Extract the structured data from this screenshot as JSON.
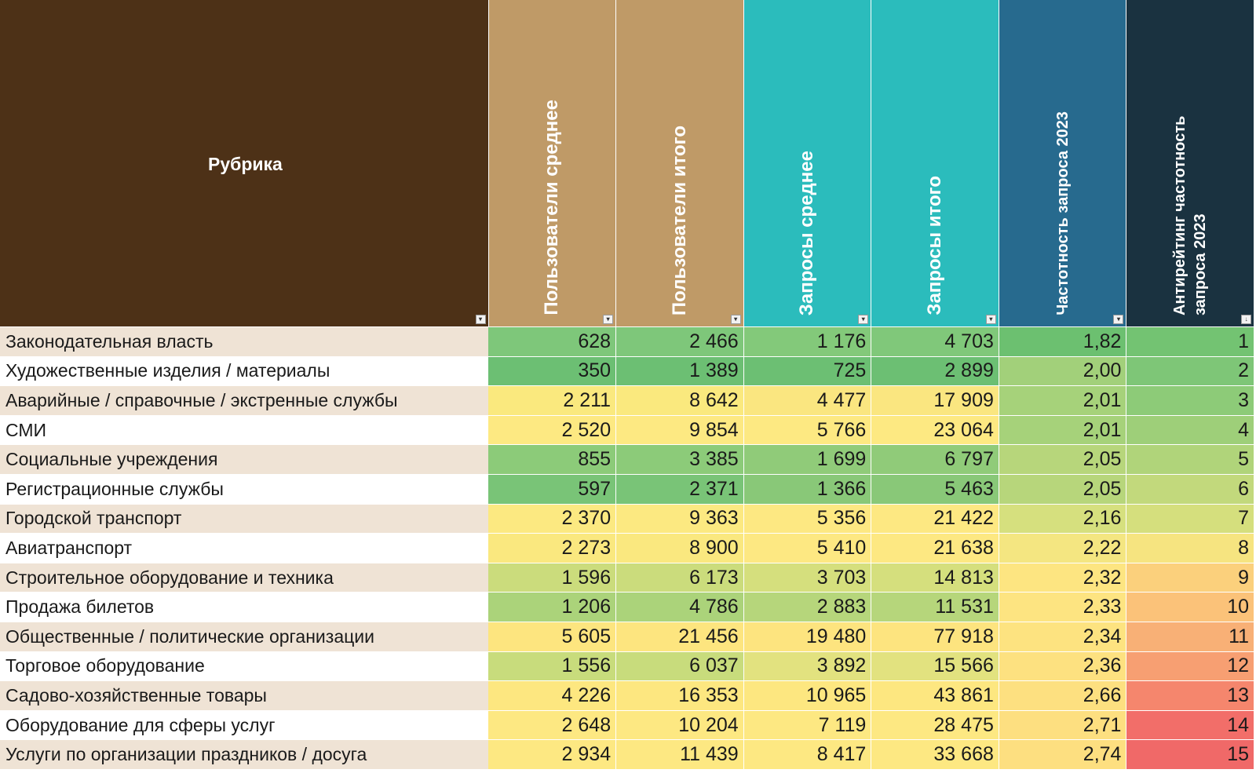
{
  "headers": [
    {
      "label": "Рубрика",
      "bg": "#4d3117"
    },
    {
      "label": "Пользователи среднее",
      "bg": "#bf9a67"
    },
    {
      "label": "Пользователи итого",
      "bg": "#bf9a67"
    },
    {
      "label": "Запросы среднее",
      "bg": "#2bbcbc"
    },
    {
      "label": "Запросы итого",
      "bg": "#2bbcbc"
    },
    {
      "label": "Частотность запроса 2023",
      "bg": "#276a8e"
    },
    {
      "label": "Антирейтинг частотность запроса 2023",
      "bg": "#1a3240"
    }
  ],
  "filter_icons": [
    "dropdown-arrow",
    "dropdown-arrow",
    "dropdown-arrow",
    "dropdown-arrow",
    "dropdown-arrow",
    "dropdown-arrow",
    "sort-descending"
  ],
  "rows": [
    {
      "name": "Законодательная власть",
      "values": [
        "628",
        "2 466",
        "1 176",
        "4 703",
        "1,82",
        "1"
      ],
      "colors": [
        "#7ec77a",
        "#7ec77a",
        "#83c97a",
        "#80c87a",
        "#6cc070",
        "#73c372"
      ]
    },
    {
      "name": "Художественные изделия / материалы",
      "values": [
        "350",
        "1 389",
        "725",
        "2 899",
        "2,00",
        "2"
      ],
      "colors": [
        "#6cbf73",
        "#6cbf73",
        "#6cbf73",
        "#6cbf73",
        "#a2d07a",
        "#7ec677"
      ]
    },
    {
      "name": "Аварийные / справочные / экстренные службы",
      "values": [
        "2 211",
        "8 642",
        "4 477",
        "17 909",
        "2,01",
        "3"
      ],
      "colors": [
        "#fae97e",
        "#fae97e",
        "#fae680",
        "#fae680",
        "#a6d27a",
        "#8dcb78"
      ]
    },
    {
      "name": "СМИ",
      "values": [
        "2 520",
        "9 854",
        "5 766",
        "23 064",
        "2,01",
        "4"
      ],
      "colors": [
        "#fde982",
        "#fde982",
        "#fde982",
        "#fde982",
        "#a6d27a",
        "#9ecf79"
      ]
    },
    {
      "name": "Социальные учреждения",
      "values": [
        "855",
        "3 385",
        "1 699",
        "6 797",
        "2,05",
        "5"
      ],
      "colors": [
        "#8ccb79",
        "#8ccb79",
        "#90cb79",
        "#90cb79",
        "#b7d67b",
        "#b0d47a"
      ]
    },
    {
      "name": "Регистрационные службы",
      "values": [
        "597",
        "2 371",
        "1 366",
        "5 463",
        "2,05",
        "6"
      ],
      "colors": [
        "#79c477",
        "#79c477",
        "#89c878",
        "#89c878",
        "#b7d67b",
        "#c2d97c"
      ]
    },
    {
      "name": "Городской транспорт",
      "values": [
        "2 370",
        "9 363",
        "5 356",
        "21 422",
        "2,16",
        "7"
      ],
      "colors": [
        "#fce981",
        "#fce981",
        "#fde882",
        "#fde882",
        "#d6e07e",
        "#d5df7d"
      ]
    },
    {
      "name": "Авиатранспорт",
      "values": [
        "2 273",
        "8 900",
        "5 410",
        "21 638",
        "2,22",
        "8"
      ],
      "colors": [
        "#fae87f",
        "#fae87f",
        "#fde882",
        "#fde882",
        "#f4e681",
        "#f6e480"
      ]
    },
    {
      "name": "Строительное оборудование и техника",
      "values": [
        "1 596",
        "6 173",
        "3 703",
        "14 813",
        "2,32",
        "9"
      ],
      "colors": [
        "#cbdc7c",
        "#cbdc7c",
        "#d5df7d",
        "#d5df7d",
        "#fde581",
        "#fbd07c"
      ]
    },
    {
      "name": "Продажа билетов",
      "values": [
        "1 206",
        "4 786",
        "2 883",
        "11 531",
        "2,33",
        "10"
      ],
      "colors": [
        "#abd37a",
        "#abd37a",
        "#b6d67b",
        "#b6d67b",
        "#fde481",
        "#fbc279"
      ]
    },
    {
      "name": "Общественные / политические организации",
      "values": [
        "5 605",
        "21 456",
        "19 480",
        "77 918",
        "2,34",
        "11"
      ],
      "colors": [
        "#fde57f",
        "#fde57f",
        "#fde47f",
        "#fde47f",
        "#fde380",
        "#f8b076"
      ]
    },
    {
      "name": "Торговое оборудование",
      "values": [
        "1 556",
        "6 037",
        "3 892",
        "15 566",
        "2,36",
        "12"
      ],
      "colors": [
        "#c8dc7c",
        "#c8dc7c",
        "#e2e27f",
        "#e2e27f",
        "#fde180",
        "#f79f72"
      ]
    },
    {
      "name": "Садово-хозяйственные товары",
      "values": [
        "4 226",
        "16 353",
        "10 965",
        "43 861",
        "2,66",
        "13"
      ],
      "colors": [
        "#fde780",
        "#fde780",
        "#fde780",
        "#fde780",
        "#fde080",
        "#f5866d"
      ]
    },
    {
      "name": "Оборудование для сферы услуг",
      "values": [
        "2 648",
        "10 204",
        "7 119",
        "28 475",
        "2,71",
        "14"
      ],
      "colors": [
        "#fde882",
        "#fde882",
        "#fde882",
        "#fde882",
        "#fddf80",
        "#f26e69"
      ]
    },
    {
      "name": "Услуги по организации праздников / досуга",
      "values": [
        "2 934",
        "11 439",
        "8 417",
        "33 668",
        "2,74",
        "15"
      ],
      "colors": [
        "#fde882",
        "#fde882",
        "#fde882",
        "#fde882",
        "#fddf80",
        "#f06968"
      ]
    }
  ]
}
